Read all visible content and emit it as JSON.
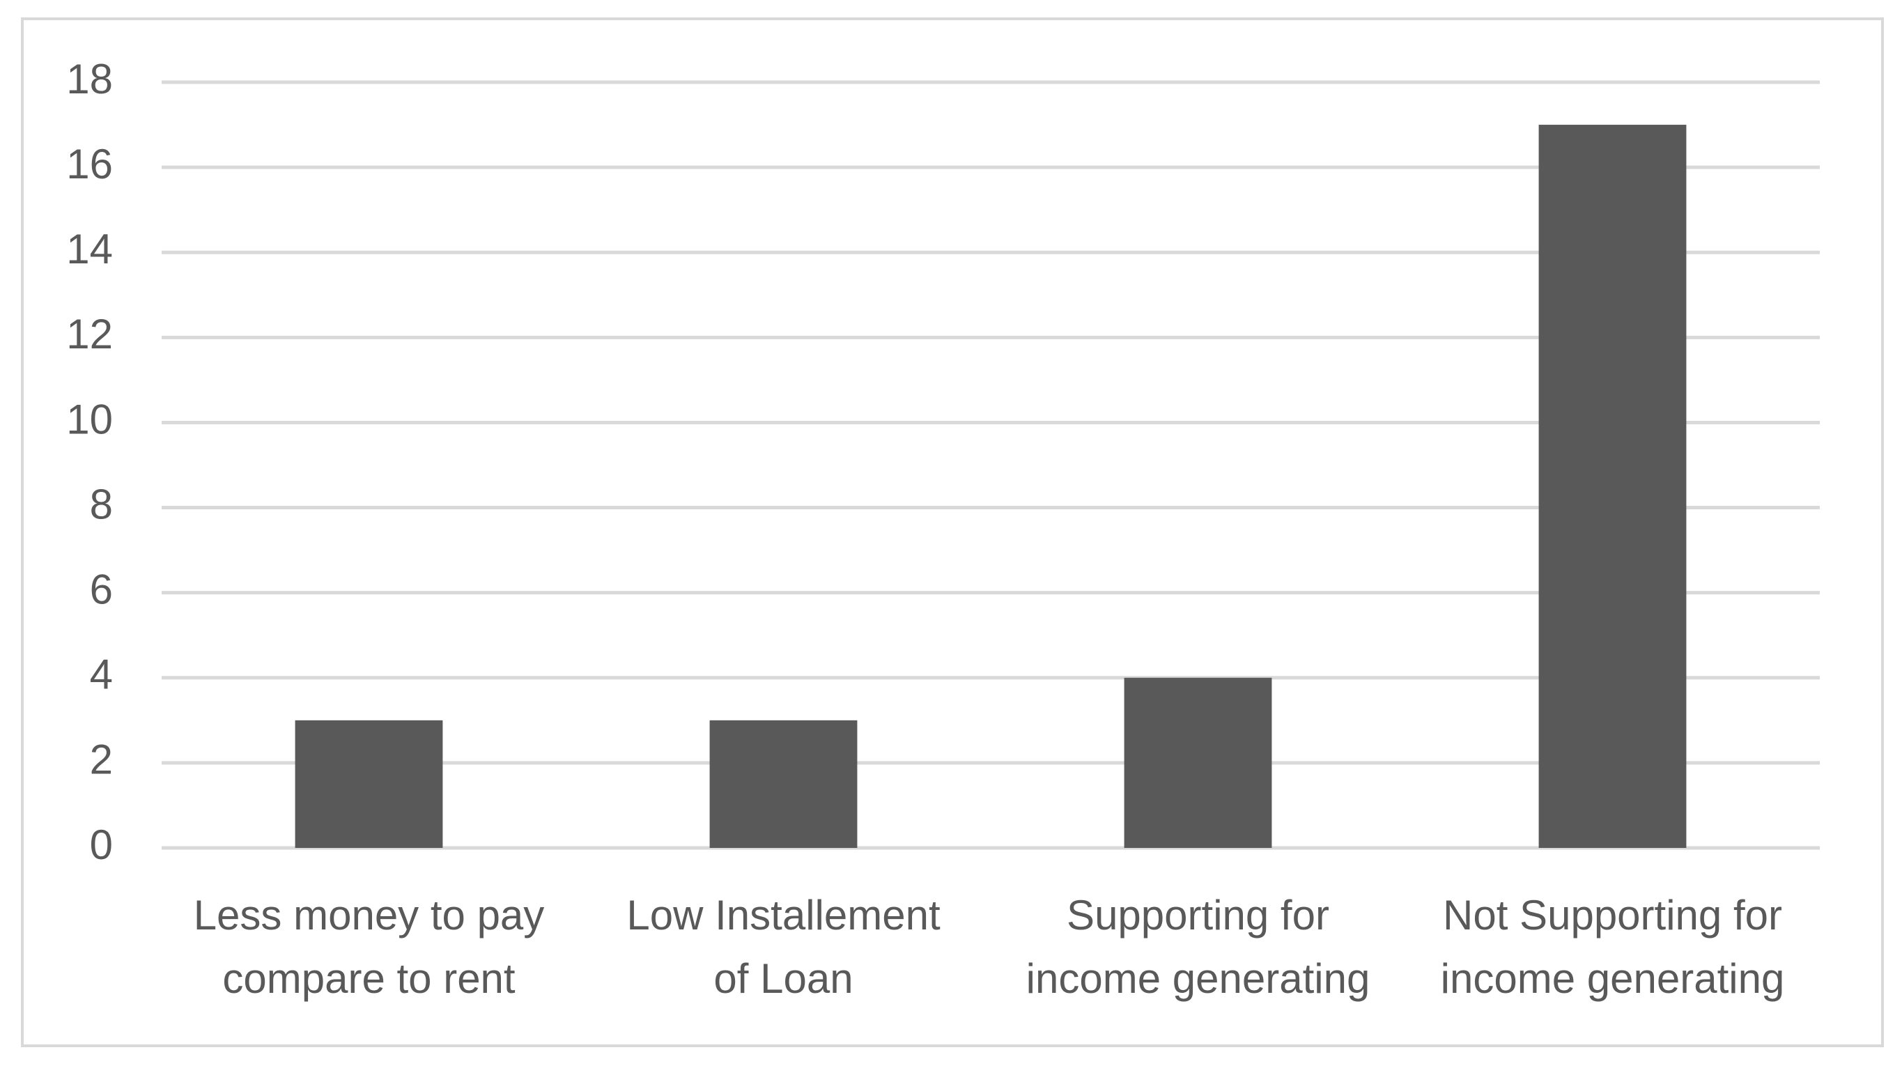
{
  "chart_data": {
    "type": "bar",
    "categories": [
      "Less money to pay\ncompare to rent",
      "Low Installement\nof Loan",
      "Supporting for\nincome generating",
      "Not Supporting for\nincome generating"
    ],
    "values": [
      3,
      3,
      4,
      17
    ],
    "color": "#595959",
    "ylim": [
      0,
      18
    ],
    "yticks": [
      0,
      2,
      4,
      6,
      8,
      10,
      12,
      14,
      16,
      18
    ],
    "grid": true
  }
}
